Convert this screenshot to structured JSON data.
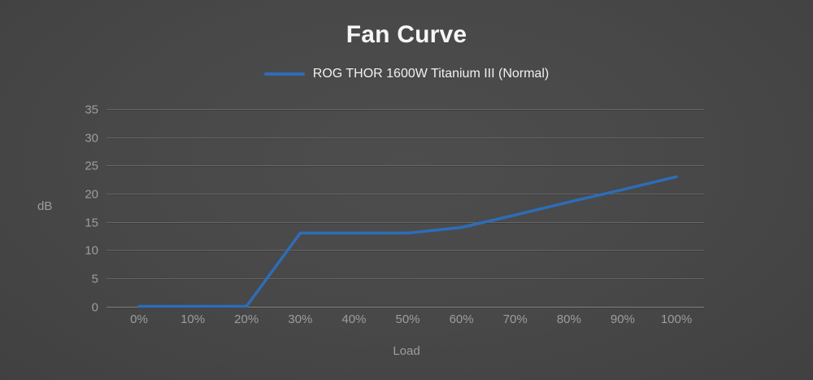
{
  "chart": {
    "title": "Fan Curve",
    "legend": "ROG THOR 1600W Titanium III (Normal)",
    "y_axis_label": "dB",
    "x_axis_label": "Load"
  },
  "colors": {
    "series_blue": "#2e6cb8",
    "grid_line": "#6e6e6e",
    "grid_shadow": "#3a3a3a",
    "axis_line": "#858585",
    "tick_label": "#9d9d9d",
    "title_text": "#f6f6f6",
    "legend_text": "#f0f0f0",
    "background_center": "#4d4d4d",
    "background_edge": "#3e3e3e"
  },
  "chart_data": {
    "type": "line",
    "title": "Fan Curve",
    "xlabel": "Load",
    "ylabel": "dB",
    "categories": [
      "0%",
      "10%",
      "20%",
      "30%",
      "40%",
      "50%",
      "60%",
      "70%",
      "80%",
      "90%",
      "100%"
    ],
    "series": [
      {
        "name": "ROG THOR 1600W Titanium III (Normal)",
        "values": [
          0,
          0,
          0,
          13,
          13,
          13,
          14,
          16.2,
          18.5,
          20.7,
          23
        ]
      }
    ],
    "ylim": [
      0,
      35
    ],
    "yticks": [
      0,
      5,
      10,
      15,
      20,
      25,
      30,
      35
    ],
    "grid": true,
    "legend_position": "top"
  }
}
